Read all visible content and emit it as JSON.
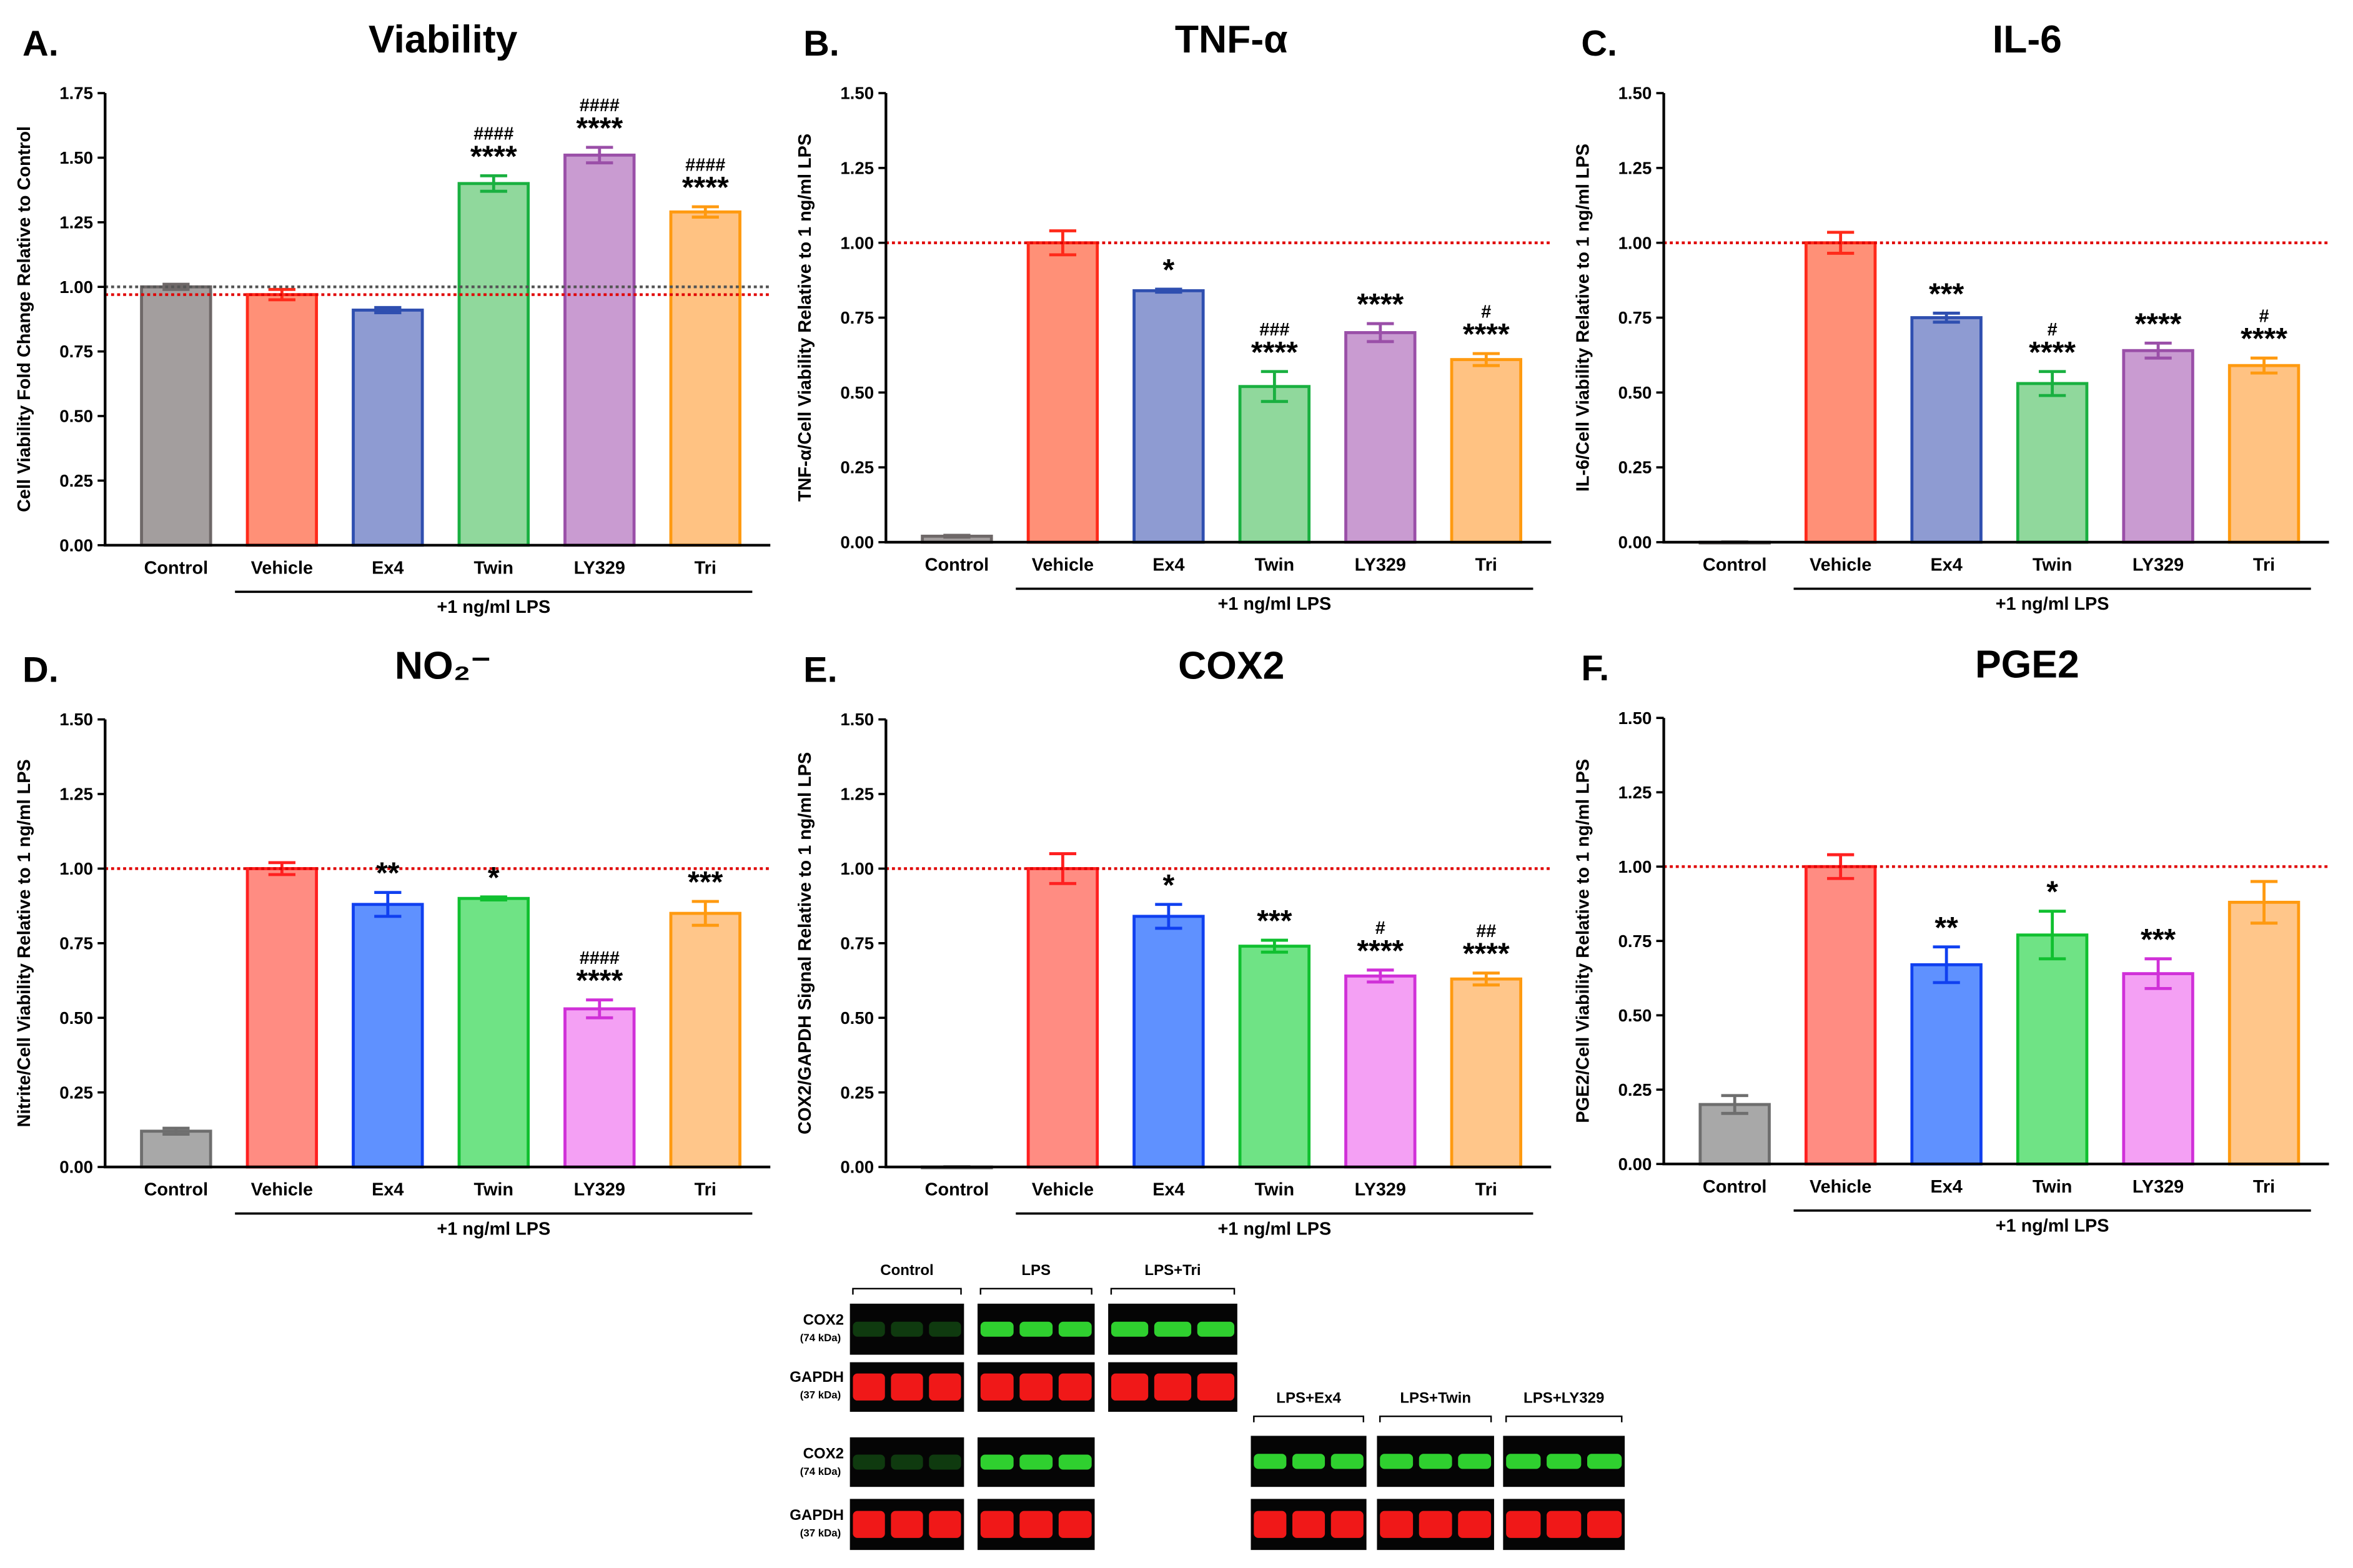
{
  "chart_data": [
    {
      "type": "bar",
      "panel": "A.",
      "title": "Viability",
      "ylabel": "Cell Viability Fold Change Relative to Control",
      "categories": [
        "Control",
        "Vehicle",
        "Ex4",
        "Twin",
        "LY329",
        "Tri"
      ],
      "values": [
        1.0,
        0.97,
        0.91,
        1.4,
        1.51,
        1.29
      ],
      "errors": [
        0.01,
        0.02,
        0.01,
        0.03,
        0.03,
        0.02
      ],
      "colors": [
        "#a39e9e",
        "#ff9077",
        "#8e9bd2",
        "#90d89c",
        "#c99bd1",
        "#ffc282"
      ],
      "edge_colors": [
        "#6e6868",
        "#ff2a1a",
        "#2f4fb0",
        "#19b040",
        "#9a4fa8",
        "#ff9a10"
      ],
      "ylim": [
        0,
        1.75
      ],
      "yticks": [
        {
          "value": 0,
          "label": "0.00"
        },
        {
          "value": 0.25,
          "label": "0.25"
        },
        {
          "value": 0.5,
          "label": "0.50"
        },
        {
          "value": 0.75,
          "label": "0.75"
        },
        {
          "value": 1,
          "label": "1.00"
        },
        {
          "value": 1.25,
          "label": "1.25"
        },
        {
          "value": 1.5,
          "label": "1.50"
        },
        {
          "value": 1.75,
          "label": "1.75"
        }
      ],
      "reference_lines": [
        {
          "value": 1.0,
          "color": "#555555"
        },
        {
          "value": 0.97,
          "color": "#e00000"
        }
      ],
      "annotations": [
        {
          "index": 3,
          "stars": "****",
          "hashes": "####"
        },
        {
          "index": 4,
          "stars": "****",
          "hashes": "####"
        },
        {
          "index": 5,
          "stars": "****",
          "hashes": "####"
        }
      ],
      "group_label": "+1 ng/ml LPS"
    },
    {
      "type": "bar",
      "panel": "B.",
      "title": "TNF-α",
      "ylabel": "TNF-α/Cell Viability Relative to 1 ng/ml LPS",
      "categories": [
        "Control",
        "Vehicle",
        "Ex4",
        "Twin",
        "LY329",
        "Tri"
      ],
      "values": [
        0.02,
        1.0,
        0.84,
        0.52,
        0.7,
        0.61
      ],
      "errors": [
        0.003,
        0.04,
        0.005,
        0.05,
        0.03,
        0.02
      ],
      "colors": [
        "#a39e9e",
        "#ff9077",
        "#8e9bd2",
        "#90d89c",
        "#c99bd1",
        "#ffc282"
      ],
      "edge_colors": [
        "#6e6868",
        "#ff2a1a",
        "#2f4fb0",
        "#19b040",
        "#9a4fa8",
        "#ff9a10"
      ],
      "ylim": [
        0,
        1.5
      ],
      "yticks": [
        {
          "value": 0,
          "label": "0.00"
        },
        {
          "value": 0.25,
          "label": "0.25"
        },
        {
          "value": 0.5,
          "label": "0.50"
        },
        {
          "value": 0.75,
          "label": "0.75"
        },
        {
          "value": 1,
          "label": "1.00"
        },
        {
          "value": 1.25,
          "label": "1.25"
        },
        {
          "value": 1.5,
          "label": "1.50"
        }
      ],
      "reference_lines": [
        {
          "value": 1.0,
          "color": "#e00000"
        }
      ],
      "annotations": [
        {
          "index": 2,
          "stars": "*"
        },
        {
          "index": 3,
          "stars": "****",
          "hashes": "###"
        },
        {
          "index": 4,
          "stars": "****"
        },
        {
          "index": 5,
          "stars": "****",
          "hashes": "#"
        }
      ],
      "group_label": "+1 ng/ml LPS"
    },
    {
      "type": "bar",
      "panel": "C.",
      "title": "IL-6",
      "ylabel": "IL-6/Cell Viability Relative to 1 ng/ml LPS",
      "categories": [
        "Control",
        "Vehicle",
        "Ex4",
        "Twin",
        "LY329",
        "Tri"
      ],
      "values": [
        0.0,
        1.0,
        0.75,
        0.53,
        0.64,
        0.59
      ],
      "errors": [
        0.001,
        0.035,
        0.015,
        0.04,
        0.025,
        0.025
      ],
      "colors": [
        "#a39e9e",
        "#ff9077",
        "#8e9bd2",
        "#90d89c",
        "#c99bd1",
        "#ffc282"
      ],
      "edge_colors": [
        "#6e6868",
        "#ff2a1a",
        "#2f4fb0",
        "#19b040",
        "#9a4fa8",
        "#ff9a10"
      ],
      "ylim": [
        0,
        1.5
      ],
      "yticks": [
        {
          "value": 0,
          "label": "0.00"
        },
        {
          "value": 0.25,
          "label": "0.25"
        },
        {
          "value": 0.5,
          "label": "0.50"
        },
        {
          "value": 0.75,
          "label": "0.75"
        },
        {
          "value": 1,
          "label": "1.00"
        },
        {
          "value": 1.25,
          "label": "1.25"
        },
        {
          "value": 1.5,
          "label": "1.50"
        }
      ],
      "reference_lines": [
        {
          "value": 1.0,
          "color": "#e00000"
        }
      ],
      "annotations": [
        {
          "index": 2,
          "stars": "***"
        },
        {
          "index": 3,
          "stars": "****",
          "hashes": "#"
        },
        {
          "index": 4,
          "stars": "****"
        },
        {
          "index": 5,
          "stars": "****",
          "hashes": "#"
        }
      ],
      "group_label": "+1 ng/ml LPS"
    },
    {
      "type": "bar",
      "panel": "D.",
      "title": "NO₂⁻",
      "ylabel": "Nitrite/Cell Viability Relative to 1 ng/ml LPS",
      "categories": [
        "Control",
        "Vehicle",
        "Ex4",
        "Twin",
        "LY329",
        "Tri"
      ],
      "values": [
        0.12,
        1.0,
        0.88,
        0.9,
        0.53,
        0.85
      ],
      "errors": [
        0.01,
        0.02,
        0.04,
        0.005,
        0.03,
        0.04
      ],
      "colors": [
        "#a8a8a8",
        "#ff8c82",
        "#5f91ff",
        "#6fe385",
        "#f4a0f4",
        "#ffc68a"
      ],
      "edge_colors": [
        "#6e6e6e",
        "#ff2020",
        "#1040f0",
        "#10c030",
        "#d030d8",
        "#ff9a10"
      ],
      "ylim": [
        0,
        1.5
      ],
      "yticks": [
        {
          "value": 0,
          "label": "0.00"
        },
        {
          "value": 0.25,
          "label": "0.25"
        },
        {
          "value": 0.5,
          "label": "0.50"
        },
        {
          "value": 0.75,
          "label": "0.75"
        },
        {
          "value": 1,
          "label": "1.00"
        },
        {
          "value": 1.25,
          "label": "1.25"
        },
        {
          "value": 1.5,
          "label": "1.50"
        }
      ],
      "reference_lines": [
        {
          "value": 1.0,
          "color": "#e00000"
        }
      ],
      "annotations": [
        {
          "index": 2,
          "stars": "**"
        },
        {
          "index": 3,
          "stars": "*"
        },
        {
          "index": 4,
          "stars": "****",
          "hashes": "####"
        },
        {
          "index": 5,
          "stars": "***"
        }
      ],
      "group_label": "+1 ng/ml LPS"
    },
    {
      "type": "bar",
      "panel": "E.",
      "title": "COX2",
      "ylabel": "COX2/GAPDH Signal Relative to 1 ng/ml LPS",
      "categories": [
        "Control",
        "Vehicle",
        "Ex4",
        "Twin",
        "LY329",
        "Tri"
      ],
      "values": [
        0.0,
        1.0,
        0.84,
        0.74,
        0.64,
        0.63
      ],
      "errors": [
        0.001,
        0.05,
        0.04,
        0.02,
        0.02,
        0.02
      ],
      "colors": [
        "#a8a8a8",
        "#ff8c82",
        "#5f91ff",
        "#6fe385",
        "#f4a0f4",
        "#ffc68a"
      ],
      "edge_colors": [
        "#6e6e6e",
        "#ff2020",
        "#1040f0",
        "#10c030",
        "#d030d8",
        "#ff9a10"
      ],
      "ylim": [
        0,
        1.5
      ],
      "yticks": [
        {
          "value": 0,
          "label": "0.00"
        },
        {
          "value": 0.25,
          "label": "0.25"
        },
        {
          "value": 0.5,
          "label": "0.50"
        },
        {
          "value": 0.75,
          "label": "0.75"
        },
        {
          "value": 1,
          "label": "1.00"
        },
        {
          "value": 1.25,
          "label": "1.25"
        },
        {
          "value": 1.5,
          "label": "1.50"
        }
      ],
      "reference_lines": [
        {
          "value": 1.0,
          "color": "#e00000"
        }
      ],
      "annotations": [
        {
          "index": 2,
          "stars": "*"
        },
        {
          "index": 3,
          "stars": "***"
        },
        {
          "index": 4,
          "stars": "****",
          "hashes": "#"
        },
        {
          "index": 5,
          "stars": "****",
          "hashes": "##"
        }
      ],
      "group_label": "+1 ng/ml LPS"
    },
    {
      "type": "bar",
      "panel": "F.",
      "title": "PGE2",
      "ylabel": "PGE2/Cell Viability Relative to 1 ng/ml LPS",
      "categories": [
        "Control",
        "Vehicle",
        "Ex4",
        "Twin",
        "LY329",
        "Tri"
      ],
      "values": [
        0.2,
        1.0,
        0.67,
        0.77,
        0.64,
        0.88
      ],
      "errors": [
        0.03,
        0.04,
        0.06,
        0.08,
        0.05,
        0.07
      ],
      "colors": [
        "#a8a8a8",
        "#ff8c82",
        "#5f91ff",
        "#6fe385",
        "#f4a0f4",
        "#ffc68a"
      ],
      "edge_colors": [
        "#6e6e6e",
        "#ff2020",
        "#1040f0",
        "#10c030",
        "#d030d8",
        "#ff9a10"
      ],
      "ylim": [
        0,
        1.5
      ],
      "yticks": [
        {
          "value": 0,
          "label": "0.00"
        },
        {
          "value": 0.25,
          "label": "0.25"
        },
        {
          "value": 0.5,
          "label": "0.50"
        },
        {
          "value": 0.75,
          "label": "0.75"
        },
        {
          "value": 1,
          "label": "1.00"
        },
        {
          "value": 1.25,
          "label": "1.25"
        },
        {
          "value": 1.5,
          "label": "1.50"
        }
      ],
      "reference_lines": [
        {
          "value": 1.0,
          "color": "#e00000"
        }
      ],
      "annotations": [
        {
          "index": 2,
          "stars": "**"
        },
        {
          "index": 3,
          "stars": "*"
        },
        {
          "index": 4,
          "stars": "***"
        }
      ],
      "group_label": "+1 ng/ml LPS"
    }
  ],
  "blot": {
    "header_top": [
      "Control",
      "LPS",
      "LPS+Tri"
    ],
    "header_bottom": [
      "LPS+Ex4",
      "LPS+Twin",
      "LPS+LY329"
    ],
    "rows": [
      {
        "label": "COX2",
        "size": "(74 kDa)"
      },
      {
        "label": "GAPDH",
        "size": "(37 kDa)"
      }
    ]
  }
}
